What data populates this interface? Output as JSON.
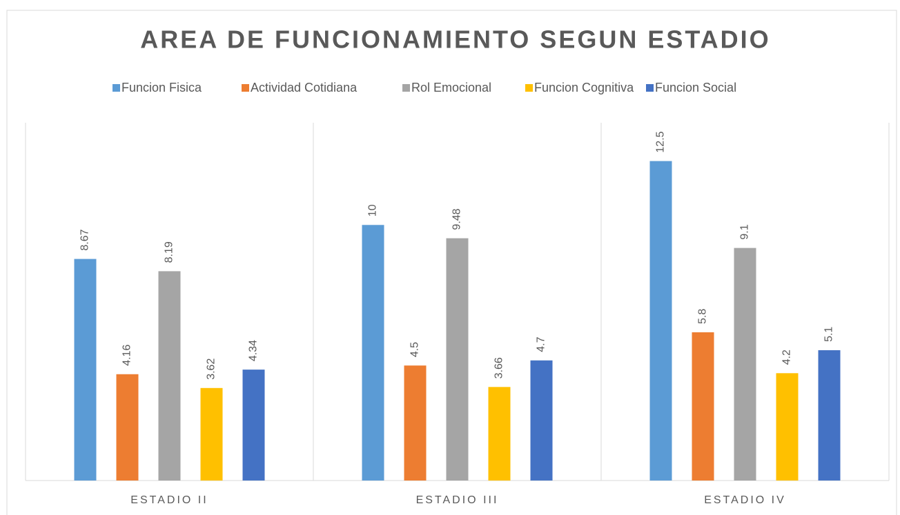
{
  "chart_data": {
    "type": "bar",
    "title": "AREA DE FUNCIONAMIENTO SEGUN ESTADIO",
    "categories": [
      "ESTADIO II",
      "ESTADIO III",
      "ESTADIO IV"
    ],
    "series": [
      {
        "name": "Funcion Fisica",
        "color": "#5b9bd5",
        "values": [
          8.67,
          10,
          12.5
        ]
      },
      {
        "name": "Actividad Cotidiana",
        "color": "#ed7d31",
        "values": [
          4.16,
          4.5,
          5.8
        ]
      },
      {
        "name": "Rol Emocional",
        "color": "#a5a5a5",
        "values": [
          8.19,
          9.48,
          9.1
        ]
      },
      {
        "name": "Funcion Cognitiva",
        "color": "#ffc000",
        "values": [
          3.62,
          3.66,
          4.2
        ]
      },
      {
        "name": "Funcion Social",
        "color": "#4472c4",
        "values": [
          4.34,
          4.7,
          5.1
        ]
      }
    ],
    "ylim": [
      0,
      14
    ],
    "legend": "top"
  }
}
